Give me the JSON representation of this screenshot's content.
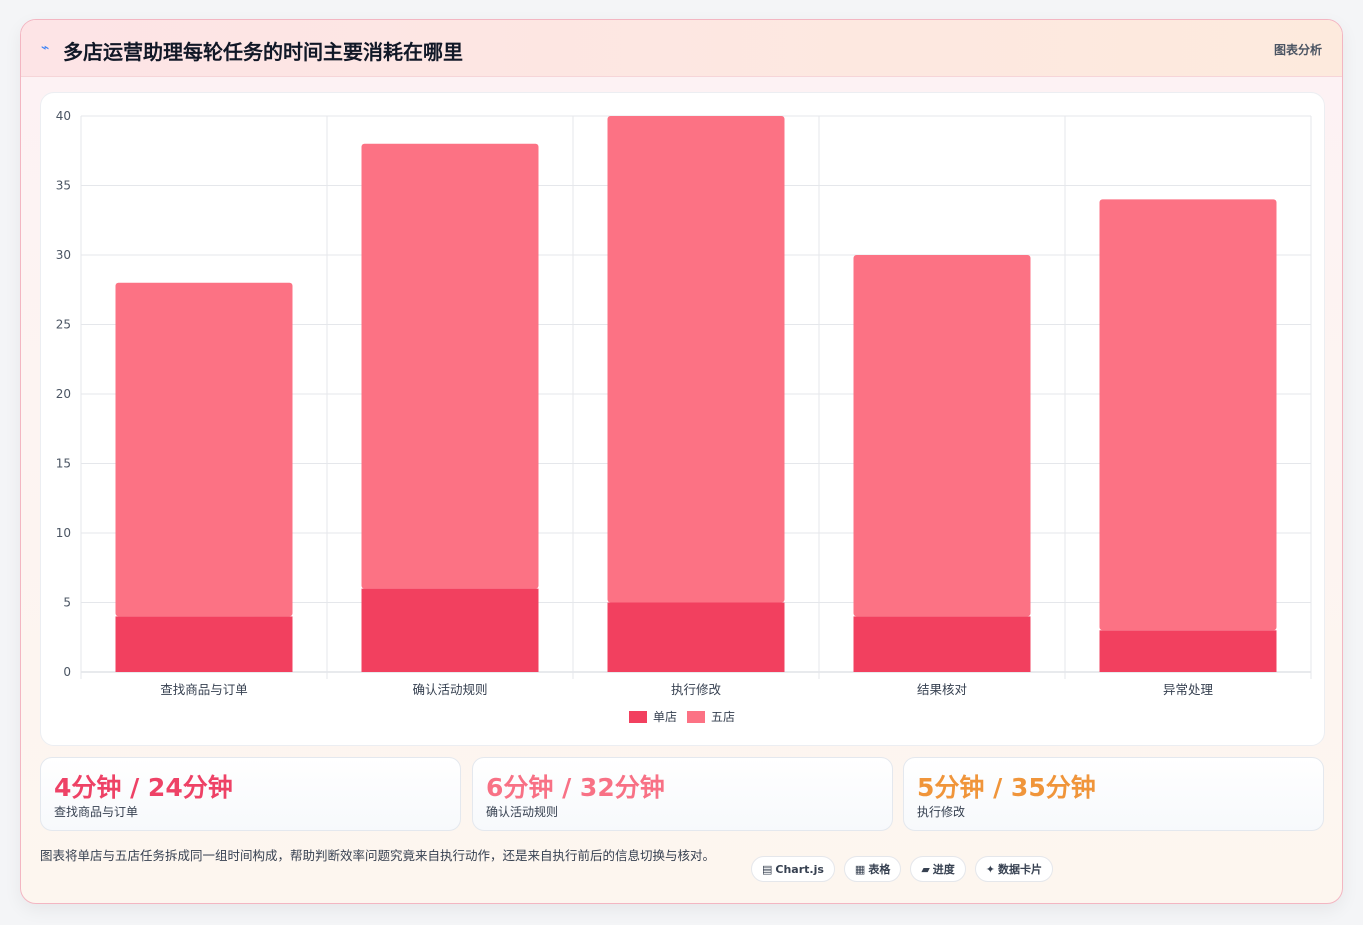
{
  "header": {
    "icon": "⌁",
    "title": "多店运营助理每轮任务的时间主要消耗在哪里",
    "tag": "图表分析"
  },
  "chart_data": {
    "type": "bar",
    "stacked": true,
    "categories": [
      "查找商品与订单",
      "确认活动规则",
      "执行修改",
      "结果核对",
      "异常处理"
    ],
    "series": [
      {
        "name": "单店",
        "values": [
          4,
          6,
          5,
          4,
          3
        ],
        "color": "#f2405f"
      },
      {
        "name": "五店",
        "values": [
          24,
          32,
          35,
          26,
          31
        ],
        "color": "#fc7284"
      }
    ],
    "ylim": [
      0,
      40
    ],
    "yticks": [
      0,
      5,
      10,
      15,
      20,
      25,
      30,
      35,
      40
    ],
    "grid": true,
    "legend": "bottom"
  },
  "stats": [
    {
      "value": "4分钟 / 24分钟",
      "label": "查找商品与订单",
      "color": "#ee4266"
    },
    {
      "value": "6分钟 / 32分钟",
      "label": "确认活动规则",
      "color": "#f87185"
    },
    {
      "value": "5分钟 / 35分钟",
      "label": "执行修改",
      "color": "#f0953a"
    }
  ],
  "description": "图表将单店与五店任务拆成同一组时间构成，帮助判断效率问题究竟来自执行动作，还是来自执行前后的信息切换与核对。",
  "chips": [
    {
      "icon": "▤",
      "label": "Chart.js"
    },
    {
      "icon": "▦",
      "label": "表格"
    },
    {
      "icon": "▰",
      "label": "进度"
    },
    {
      "icon": "✦",
      "label": "数据卡片"
    }
  ]
}
